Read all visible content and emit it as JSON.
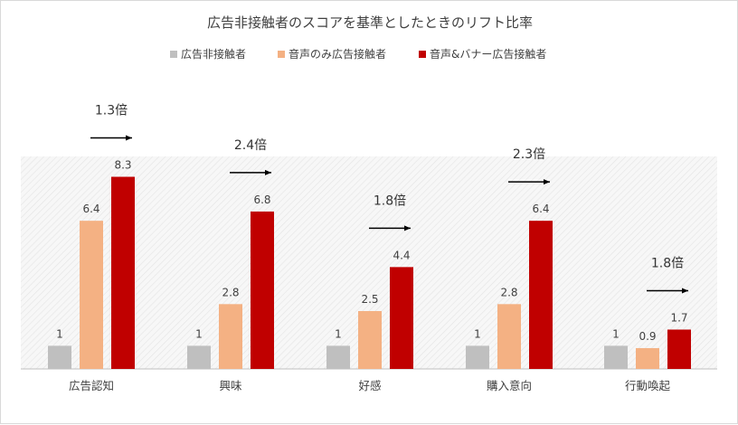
{
  "chart_data": {
    "type": "bar",
    "title": "広告非接触者のスコアを基準としたときのリフト比率",
    "categories": [
      "広告認知",
      "興味",
      "好感",
      "購入意向",
      "行動喚起"
    ],
    "series": [
      {
        "name": "広告非接触者",
        "values": [
          1,
          1,
          1,
          1,
          1
        ],
        "labels": [
          "1",
          "1",
          "1",
          "1",
          "1"
        ],
        "color": "#bfbfbf"
      },
      {
        "name": "音声のみ広告接触者",
        "values": [
          6.4,
          2.8,
          2.5,
          2.8,
          0.9
        ],
        "labels": [
          "6.4",
          "2.8",
          "2.5",
          "2.8",
          "0.9"
        ],
        "color": "#f4b183"
      },
      {
        "name": "音声&バナー広告接触者",
        "values": [
          8.3,
          6.8,
          4.4,
          6.4,
          1.7
        ],
        "labels": [
          "8.3",
          "6.8",
          "4.4",
          "6.4",
          "1.7"
        ],
        "color": "#c00000"
      }
    ],
    "lift_annotations": [
      "1.3倍",
      "2.4倍",
      "1.8倍",
      "2.3倍",
      "1.8倍"
    ],
    "ylim": [
      0,
      9
    ],
    "grid": false,
    "legend_position": "top-center",
    "plot_background": "hatched-light-gray"
  }
}
